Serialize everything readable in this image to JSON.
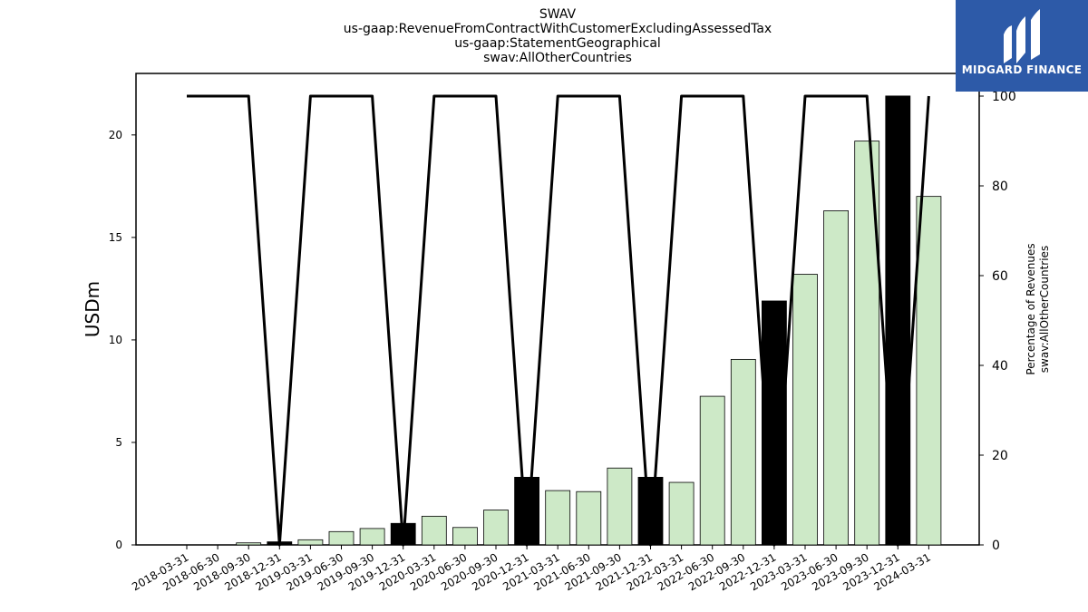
{
  "chart_data": {
    "type": "bar",
    "title_lines": [
      "SWAV",
      "us-gaap:RevenueFromContractWithCustomerExcludingAssessedTax",
      "us-gaap:StatementGeographical",
      "swav:AllOtherCountries"
    ],
    "ylabel": "USDm",
    "y2label_lines": [
      "Percentage of Revenues",
      "swav:AllOtherCountries"
    ],
    "ylim": [
      0,
      23
    ],
    "y2lim": [
      0,
      100
    ],
    "yticks": [
      0,
      5,
      10,
      15,
      20
    ],
    "y2ticks": [
      0,
      20,
      40,
      60,
      80,
      100
    ],
    "categories": [
      "2018-03-31",
      "2018-06-30",
      "2018-09-30",
      "2018-12-31",
      "2019-03-31",
      "2019-06-30",
      "2019-09-30",
      "2019-12-31",
      "2020-03-31",
      "2020-06-30",
      "2020-09-30",
      "2020-12-31",
      "2021-03-31",
      "2021-06-30",
      "2021-09-30",
      "2021-12-31",
      "2022-03-31",
      "2022-06-30",
      "2022-09-30",
      "2022-12-31",
      "2023-03-31",
      "2023-06-30",
      "2023-09-30",
      "2023-12-31",
      "2024-03-31"
    ],
    "series": [
      {
        "values": [
          0,
          0,
          0.1,
          0.15,
          0.25,
          0.65,
          0.8,
          1.05,
          1.4,
          0.85,
          1.7,
          3.3,
          2.65,
          2.6,
          3.75,
          3.3,
          3.05,
          7.25,
          9.05,
          11.9,
          13.2,
          16.3,
          19.7,
          21.9,
          17.0
        ],
        "highlighted": [
          false,
          false,
          false,
          true,
          false,
          false,
          false,
          true,
          false,
          false,
          false,
          true,
          false,
          false,
          false,
          true,
          false,
          false,
          false,
          true,
          false,
          false,
          false,
          true,
          false
        ]
      },
      {
        "type": "line",
        "axis": "right",
        "values": [
          100,
          100,
          100,
          0,
          100,
          100,
          100,
          0,
          100,
          100,
          100,
          0,
          100,
          100,
          100,
          0,
          100,
          100,
          100,
          0,
          100,
          100,
          100,
          0,
          100
        ]
      }
    ],
    "colors": {
      "bar": "#cde9c7",
      "bar_highlight": "#000000",
      "line": "#000000"
    },
    "grid": false
  },
  "logo": {
    "text": "MIDGARD FINANCE",
    "background": "#2d5aa8"
  }
}
